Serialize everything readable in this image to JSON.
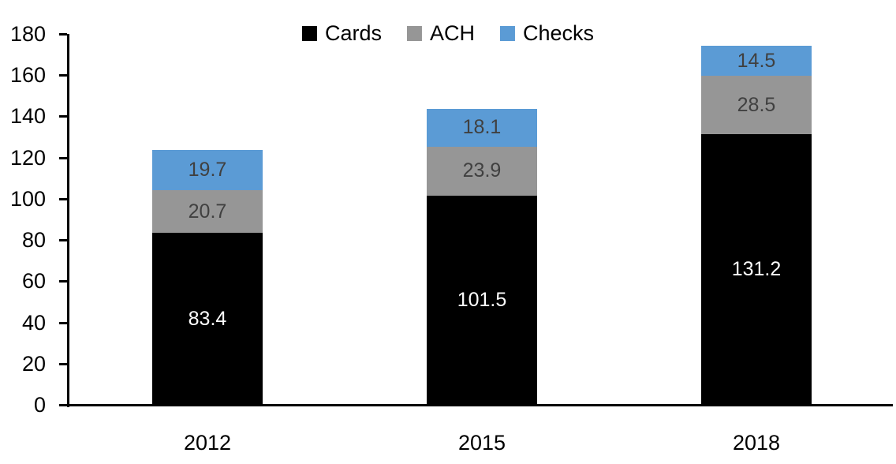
{
  "chart_data": {
    "type": "bar",
    "stacked": true,
    "title": "",
    "xlabel": "",
    "ylabel": "",
    "categories": [
      "2012",
      "2015",
      "2018"
    ],
    "series": [
      {
        "name": "Cards",
        "color": "#000000",
        "label_color": "#ffffff",
        "values": [
          83.4,
          101.5,
          131.2
        ]
      },
      {
        "name": "ACH",
        "color": "#969696",
        "label_color": "#404040",
        "values": [
          20.7,
          23.9,
          28.5
        ]
      },
      {
        "name": "Checks",
        "color": "#5b9bd5",
        "label_color": "#404040",
        "values": [
          19.7,
          18.1,
          14.5
        ]
      }
    ],
    "stack_totals": [
      123.8,
      143.5,
      174.2
    ],
    "ylim": [
      0,
      180
    ],
    "yticks": [
      0,
      20,
      40,
      60,
      80,
      100,
      120,
      140,
      160,
      180
    ],
    "grid": false,
    "legend_position": "top-center",
    "value_labels": "inside-center",
    "axis_color": "#000000",
    "background_color": "#ffffff"
  }
}
